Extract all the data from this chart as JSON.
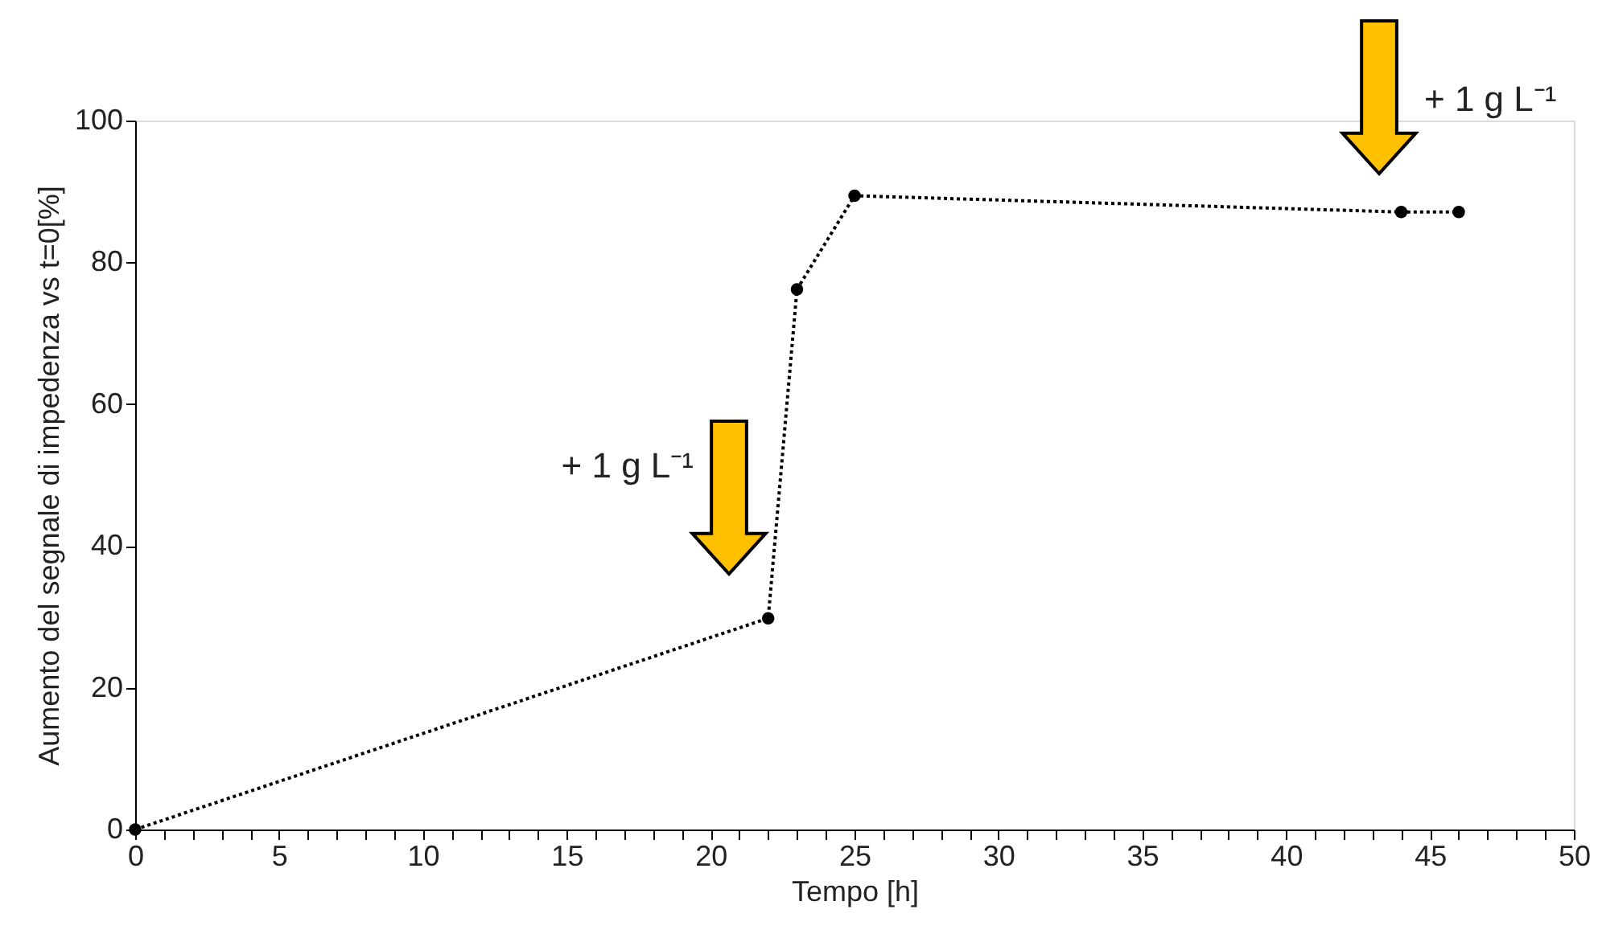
{
  "chart_data": {
    "type": "line",
    "xlabel": "Tempo [h]",
    "ylabel": "Aumento del segnale di impedenza vs t=0[%]",
    "x": [
      0,
      22,
      23,
      25,
      44,
      46
    ],
    "series": [
      {
        "color": "#000000",
        "values": [
          0,
          29.8,
          76.2,
          89.4,
          87.1,
          87.1
        ]
      }
    ],
    "xlim": [
      0,
      50
    ],
    "ylim": [
      0,
      100
    ],
    "xticks": [
      0,
      {
        "value": 1,
        "label": null
      },
      {
        "value": 2,
        "label": null
      },
      {
        "value": 3,
        "label": null
      },
      {
        "value": 4,
        "label": null
      },
      5,
      {
        "value": 6,
        "label": null
      },
      {
        "value": 7,
        "label": null
      },
      {
        "value": 8,
        "label": null
      },
      {
        "value": 9,
        "label": null
      },
      10,
      {
        "value": 11,
        "label": null
      },
      {
        "value": 12,
        "label": null
      },
      {
        "value": 13,
        "label": null
      },
      {
        "value": 14,
        "label": null
      },
      15,
      {
        "value": 16,
        "label": null
      },
      {
        "value": 17,
        "label": null
      },
      {
        "value": 18,
        "label": null
      },
      {
        "value": 19,
        "label": null
      },
      20,
      {
        "value": 21,
        "label": null
      },
      {
        "value": 22,
        "label": null
      },
      {
        "value": 23,
        "label": null
      },
      {
        "value": 24,
        "label": null
      },
      25,
      {
        "value": 26,
        "label": null
      },
      {
        "value": 27,
        "label": null
      },
      {
        "value": 28,
        "label": null
      },
      {
        "value": 29,
        "label": null
      },
      30,
      {
        "value": 31,
        "label": null
      },
      {
        "value": 32,
        "label": null
      },
      {
        "value": 33,
        "label": null
      },
      {
        "value": 34,
        "label": null
      },
      35,
      {
        "value": 36,
        "label": null
      },
      {
        "value": 37,
        "label": null
      },
      {
        "value": 38,
        "label": null
      },
      {
        "value": 39,
        "label": null
      },
      40,
      {
        "value": 41,
        "label": null
      },
      {
        "value": 42,
        "label": null
      },
      {
        "value": 43,
        "label": null
      },
      {
        "value": 44,
        "label": null
      },
      45,
      {
        "value": 46,
        "label": null
      },
      {
        "value": 47,
        "label": null
      },
      {
        "value": 48,
        "label": null
      },
      {
        "value": 49,
        "label": null
      },
      50
    ],
    "yticks": [
      0,
      20,
      40,
      60,
      80,
      100
    ],
    "grid": false,
    "marker": "circle",
    "line_style": "dotted",
    "annotations": [
      "+ 1 g L⁻¹",
      "+ 1 g L⁻¹"
    ]
  }
}
